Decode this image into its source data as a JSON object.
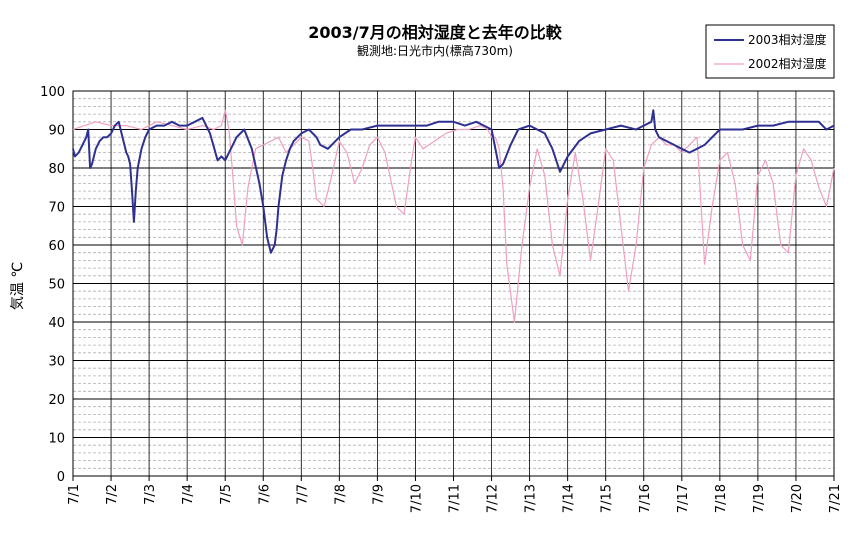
{
  "chart_data": {
    "type": "line",
    "title": "2003/7月の相対湿度と去年の比較",
    "subtitle": "観測地:日光市内(標高730m)",
    "ylabel": "気温 ℃",
    "xlabel": "",
    "ylim": [
      0,
      100
    ],
    "yticks": [
      0,
      10,
      20,
      30,
      40,
      50,
      60,
      70,
      80,
      90,
      100
    ],
    "xlim": [
      0,
      20
    ],
    "xtick_labels": [
      "7/1",
      "7/2",
      "7/3",
      "7/4",
      "7/5",
      "7/6",
      "7/7",
      "7/8",
      "7/9",
      "7/10",
      "7/11",
      "7/12",
      "7/13",
      "7/14",
      "7/15",
      "7/16",
      "7/17",
      "7/18",
      "7/19",
      "7/20",
      "7/21"
    ],
    "grid": {
      "major": true,
      "minor": true,
      "minor_step": 2
    },
    "legend": "top-right",
    "series": [
      {
        "name": "2003相対湿度",
        "color": "#2e3192",
        "x": [
          0,
          0.05,
          0.15,
          0.25,
          0.35,
          0.4,
          0.45,
          0.5,
          0.6,
          0.7,
          0.8,
          0.9,
          1.0,
          1.1,
          1.2,
          1.3,
          1.35,
          1.4,
          1.45,
          1.5,
          1.55,
          1.6,
          1.65,
          1.7,
          1.8,
          1.9,
          2.0,
          2.2,
          2.4,
          2.6,
          2.8,
          3.0,
          3.2,
          3.4,
          3.6,
          3.8,
          3.9,
          4.0,
          4.05,
          4.1,
          4.2,
          4.3,
          4.5,
          4.7,
          4.9,
          5.0,
          5.1,
          5.2,
          5.3,
          5.35,
          5.4,
          5.5,
          5.6,
          5.7,
          5.8,
          5.9,
          6.0,
          6.2,
          6.4,
          6.5,
          6.7,
          7.0,
          7.3,
          7.6,
          8.0,
          8.4,
          8.8,
          9.0,
          9.3,
          9.6,
          10.0,
          10.3,
          10.6,
          10.8,
          11.0,
          11.1,
          11.2,
          11.3,
          11.5,
          11.7,
          12.0,
          12.2,
          12.4,
          12.6,
          12.8,
          13.0,
          13.3,
          13.6,
          14.0,
          14.4,
          14.8,
          15.0,
          15.2,
          15.25,
          15.3,
          15.4,
          15.6,
          15.8,
          16.0,
          16.2,
          16.4,
          16.6,
          16.8,
          17.0,
          17.3,
          17.6,
          18.0,
          18.4,
          18.8,
          19.0,
          19.2,
          19.4,
          19.6,
          19.8,
          20.0
        ],
        "values": [
          85,
          83,
          84,
          86,
          88,
          90,
          80,
          81,
          85,
          87,
          88,
          88,
          89,
          91,
          92,
          88,
          86,
          84,
          83,
          81,
          74,
          66,
          74,
          80,
          85,
          88,
          90,
          91,
          91,
          92,
          91,
          91,
          92,
          93,
          89,
          82,
          83,
          82,
          83,
          84,
          86,
          88,
          90,
          85,
          76,
          70,
          62,
          58,
          60,
          64,
          70,
          78,
          82,
          85,
          87,
          88,
          89,
          90,
          88,
          86,
          85,
          88,
          90,
          90,
          91,
          91,
          91,
          91,
          91,
          92,
          92,
          91,
          92,
          91,
          90,
          85,
          80,
          81,
          86,
          90,
          91,
          90,
          89,
          85,
          79,
          83,
          87,
          89,
          90,
          91,
          90,
          91,
          92,
          95,
          90,
          88,
          87,
          86,
          85,
          84,
          85,
          86,
          88,
          90,
          90,
          90,
          91,
          91,
          92,
          92,
          92,
          92,
          92,
          90,
          91
        ]
      },
      {
        "name": "2002相対湿度",
        "color": "#f19ec2",
        "x": [
          0,
          0.3,
          0.6,
          1.0,
          1.4,
          1.8,
          2.2,
          2.6,
          3.0,
          3.4,
          3.7,
          3.9,
          4.0,
          4.1,
          4.2,
          4.3,
          4.45,
          4.6,
          4.8,
          5.0,
          5.2,
          5.4,
          5.6,
          5.8,
          6.0,
          6.2,
          6.3,
          6.4,
          6.6,
          6.8,
          7.0,
          7.2,
          7.4,
          7.6,
          7.8,
          8.0,
          8.2,
          8.5,
          8.7,
          8.9,
          9.0,
          9.2,
          9.5,
          9.8,
          10.1,
          10.4,
          10.7,
          10.9,
          11.0,
          11.1,
          11.2,
          11.3,
          11.4,
          11.6,
          11.8,
          12.0,
          12.2,
          12.4,
          12.6,
          12.8,
          13.0,
          13.2,
          13.4,
          13.6,
          13.8,
          14.0,
          14.2,
          14.4,
          14.6,
          14.8,
          15.0,
          15.2,
          15.4,
          15.6,
          15.8,
          16.0,
          16.2,
          16.4,
          16.6,
          16.8,
          17.0,
          17.2,
          17.4,
          17.6,
          17.8,
          18.0,
          18.2,
          18.4,
          18.6,
          18.8,
          19.0,
          19.2,
          19.4,
          19.6,
          19.8,
          20.0
        ],
        "values": [
          90,
          91,
          92,
          91,
          91,
          90,
          92,
          91,
          90,
          91,
          90,
          91,
          95,
          90,
          78,
          65,
          60,
          75,
          85,
          86,
          87,
          88,
          84,
          86,
          88,
          87,
          80,
          72,
          70,
          78,
          87,
          84,
          76,
          80,
          86,
          88,
          84,
          70,
          68,
          82,
          88,
          85,
          87,
          89,
          90,
          90,
          91,
          90,
          88,
          88,
          85,
          75,
          55,
          40,
          60,
          75,
          85,
          78,
          60,
          52,
          72,
          84,
          72,
          56,
          70,
          85,
          82,
          65,
          48,
          60,
          80,
          86,
          88,
          86,
          86,
          84,
          86,
          88,
          55,
          70,
          82,
          84,
          76,
          60,
          56,
          78,
          82,
          76,
          60,
          58,
          78,
          85,
          82,
          75,
          70,
          80
        ]
      }
    ]
  }
}
